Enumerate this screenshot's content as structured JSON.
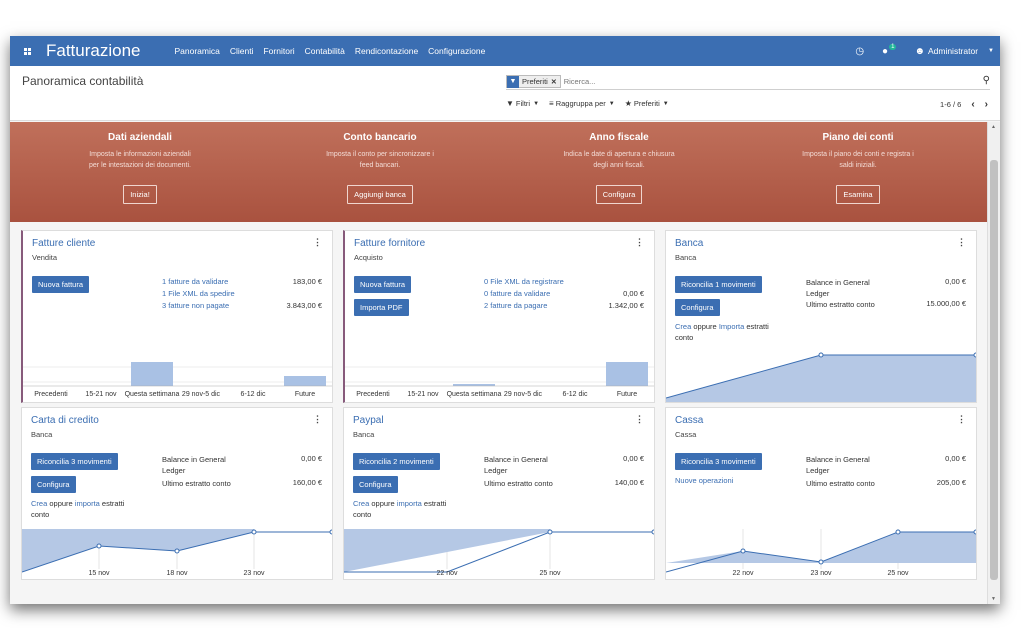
{
  "navbar": {
    "brand": "Fatturazione",
    "menu": [
      "Panoramica",
      "Clienti",
      "Fornitori",
      "Contabilità",
      "Rendicontazione",
      "Configurazione"
    ],
    "chat_badge": "1",
    "user": "Administrator"
  },
  "control": {
    "title": "Panoramica contabilità",
    "facet_label": "Preferiti",
    "search_placeholder": "Ricerca...",
    "filters_label": "Filtri",
    "groupby_label": "Raggruppa per",
    "favorites_label": "Preferiti",
    "pager": "1-6 / 6"
  },
  "banner": {
    "steps": [
      {
        "title": "Dati aziendali",
        "desc1": "Imposta le informazioni aziendali",
        "desc2": "per le intestazioni dei documenti.",
        "button": "Inizia!"
      },
      {
        "title": "Conto bancario",
        "desc1": "Imposta il conto per sincronizzare i",
        "desc2": "feed bancari.",
        "button": "Aggiungi banca"
      },
      {
        "title": "Anno fiscale",
        "desc1": "Indica le date di apertura e chiusura",
        "desc2": "degli anni fiscali.",
        "button": "Configura"
      },
      {
        "title": "Piano dei conti",
        "desc1": "Imposta il piano dei conti e registra i",
        "desc2": "saldi iniziali.",
        "button": "Esamina"
      }
    ]
  },
  "cards": {
    "sale": {
      "title": "Fatture cliente",
      "subtitle": "Vendita",
      "button": "Nuova fattura",
      "links": [
        "1 fatture da validare",
        "1 File XML da spedire",
        "3 fatture non pagate"
      ],
      "amounts": [
        "183,00 €",
        "3.843,00 €"
      ],
      "chart_labels": [
        "Precedenti",
        "15-21 nov",
        "Questa settimana",
        "29 nov-5 dic",
        "6-12 dic",
        "Future"
      ]
    },
    "purchase": {
      "title": "Fatture fornitore",
      "subtitle": "Acquisto",
      "button1": "Nuova fattura",
      "button2": "Importa PDF",
      "links": [
        "0 File XML da registrare",
        "0 fatture da validare",
        "2 fatture da pagare"
      ],
      "amounts": [
        "0,00 €",
        "1.342,00 €"
      ],
      "chart_labels": [
        "Precedenti",
        "15-21 nov",
        "Questa settimana",
        "29 nov-5 dic",
        "6-12 dic",
        "Future"
      ]
    },
    "bank": {
      "title": "Banca",
      "subtitle": "Banca",
      "button1": "Riconcilia 1 movimenti",
      "button2": "Configura",
      "link_create": "Crea",
      "text_or": "oppure",
      "link_import": "Importa",
      "text_tail1": "estratti",
      "text_tail2": "conto",
      "label_gl1": "Balance in General",
      "label_gl2": "Ledger",
      "label_last": "Ultimo estratto conto",
      "amount_gl": "0,00 €",
      "amount_last": "15.000,00 €"
    },
    "credit": {
      "title": "Carta di credito",
      "subtitle": "Banca",
      "button1": "Riconcilia 3 movimenti",
      "button2": "Configura",
      "link_create": "Crea",
      "text_or": "oppure",
      "link_import": "importa",
      "text_tail1": "estratti",
      "text_tail2": "conto",
      "label_gl1": "Balance in General",
      "label_gl2": "Ledger",
      "label_last": "Ultimo estratto conto",
      "amount_gl": "0,00 €",
      "amount_last": "160,00 €",
      "chart_labels": [
        "15 nov",
        "18 nov",
        "23 nov"
      ]
    },
    "paypal": {
      "title": "Paypal",
      "subtitle": "Banca",
      "button1": "Riconcilia 2 movimenti",
      "button2": "Configura",
      "link_create": "Crea",
      "text_or": "oppure",
      "link_import": "importa",
      "text_tail1": "estratti",
      "text_tail2": "conto",
      "label_gl1": "Balance in General",
      "label_gl2": "Ledger",
      "label_last": "Ultimo estratto conto",
      "amount_gl": "0,00 €",
      "amount_last": "140,00 €",
      "chart_labels": [
        "22 nov",
        "25 nov"
      ]
    },
    "cash": {
      "title": "Cassa",
      "subtitle": "Cassa",
      "button1": "Riconcilia 3 movimenti",
      "link_new": "Nuove operazioni",
      "label_gl1": "Balance in General",
      "label_gl2": "Ledger",
      "label_last": "Ultimo estratto conto",
      "amount_gl": "0,00 €",
      "amount_last": "205,00 €",
      "chart_labels": [
        "22 nov",
        "23 nov",
        "25 nov"
      ]
    }
  },
  "colors": {
    "primary": "#3b6eb2",
    "banner": "#b35c47",
    "accent_bar": "#875a7b",
    "chart_fill": "#b5c8e5"
  }
}
